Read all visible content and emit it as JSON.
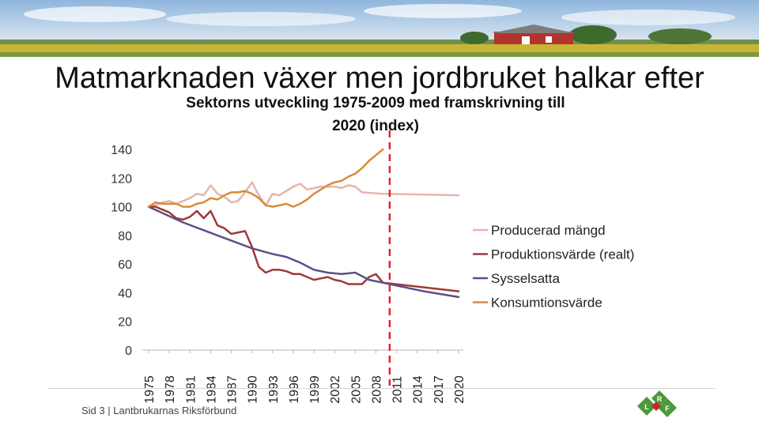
{
  "slide_title": "Matmarknaden växer men jordbruket halkar efter",
  "chart_data": {
    "type": "line",
    "title": [
      "Sektorns utveckling 1975-2009 med framskrivning till",
      "2020 (index)"
    ],
    "xlabel": "",
    "ylabel": "",
    "ylim": [
      0,
      140
    ],
    "xlim": [
      1975,
      2020
    ],
    "y_ticks": [
      0,
      20,
      40,
      60,
      80,
      100,
      120,
      140
    ],
    "x_ticks": [
      "1975",
      "1978",
      "1981",
      "1984",
      "1987",
      "1990",
      "1993",
      "1996",
      "1999",
      "2002",
      "2005",
      "2008",
      "2011",
      "2014",
      "2017",
      "2020"
    ],
    "grid": false,
    "legend_position": "right",
    "vertical_marker": {
      "x": 2010,
      "style": "dashed",
      "color": "#e8202a"
    },
    "series": [
      {
        "name": "Producerad mängd",
        "color": "#e8b3ad",
        "points": [
          [
            1975,
            100
          ],
          [
            1976,
            101
          ],
          [
            1977,
            103
          ],
          [
            1978,
            104
          ],
          [
            1979,
            102
          ],
          [
            1980,
            104
          ],
          [
            1981,
            106
          ],
          [
            1982,
            109
          ],
          [
            1983,
            108
          ],
          [
            1984,
            115
          ],
          [
            1985,
            109
          ],
          [
            1986,
            107
          ],
          [
            1987,
            103
          ],
          [
            1988,
            104
          ],
          [
            1989,
            110
          ],
          [
            1990,
            117
          ],
          [
            1991,
            108
          ],
          [
            1992,
            101
          ],
          [
            1993,
            109
          ],
          [
            1994,
            108
          ],
          [
            1995,
            111
          ],
          [
            1996,
            114
          ],
          [
            1997,
            116
          ],
          [
            1998,
            112
          ],
          [
            1999,
            113
          ],
          [
            2000,
            114
          ],
          [
            2001,
            114
          ],
          [
            2002,
            114
          ],
          [
            2003,
            113
          ],
          [
            2004,
            115
          ],
          [
            2005,
            114
          ],
          [
            2006,
            110
          ],
          [
            2009,
            109
          ],
          [
            2020,
            108
          ]
        ]
      },
      {
        "name": "Produktionsvärde (realt)",
        "color": "#9e3a38",
        "points": [
          [
            1975,
            100
          ],
          [
            1976,
            100
          ],
          [
            1977,
            98
          ],
          [
            1978,
            96
          ],
          [
            1979,
            92
          ],
          [
            1980,
            91
          ],
          [
            1981,
            93
          ],
          [
            1982,
            97
          ],
          [
            1983,
            92
          ],
          [
            1984,
            97
          ],
          [
            1985,
            87
          ],
          [
            1986,
            85
          ],
          [
            1987,
            81
          ],
          [
            1988,
            82
          ],
          [
            1989,
            83
          ],
          [
            1990,
            72
          ],
          [
            1991,
            58
          ],
          [
            1992,
            54
          ],
          [
            1993,
            56
          ],
          [
            1994,
            56
          ],
          [
            1995,
            55
          ],
          [
            1996,
            53
          ],
          [
            1997,
            53
          ],
          [
            1998,
            51
          ],
          [
            1999,
            49
          ],
          [
            2000,
            50
          ],
          [
            2001,
            51
          ],
          [
            2002,
            49
          ],
          [
            2003,
            48
          ],
          [
            2004,
            46
          ],
          [
            2005,
            46
          ],
          [
            2006,
            46
          ],
          [
            2007,
            51
          ],
          [
            2008,
            53
          ],
          [
            2009,
            47
          ],
          [
            2020,
            41
          ]
        ]
      },
      {
        "name": "Sysselsatta",
        "color": "#5e4f87",
        "points": [
          [
            1975,
            100
          ],
          [
            1980,
            89
          ],
          [
            1985,
            80
          ],
          [
            1990,
            71
          ],
          [
            1993,
            67
          ],
          [
            1995,
            65
          ],
          [
            1997,
            61
          ],
          [
            1999,
            56
          ],
          [
            2001,
            54
          ],
          [
            2003,
            53
          ],
          [
            2005,
            54
          ],
          [
            2007,
            49
          ],
          [
            2009,
            47
          ],
          [
            2012,
            44
          ],
          [
            2015,
            41
          ],
          [
            2020,
            37
          ]
        ]
      },
      {
        "name": "Konsumtionsvärde",
        "color": "#d88a3c",
        "points": [
          [
            1975,
            100
          ],
          [
            1976,
            103
          ],
          [
            1977,
            102
          ],
          [
            1978,
            102
          ],
          [
            1979,
            102
          ],
          [
            1980,
            100
          ],
          [
            1981,
            100
          ],
          [
            1982,
            102
          ],
          [
            1983,
            103
          ],
          [
            1984,
            106
          ],
          [
            1985,
            105
          ],
          [
            1986,
            108
          ],
          [
            1987,
            110
          ],
          [
            1988,
            110
          ],
          [
            1989,
            111
          ],
          [
            1990,
            109
          ],
          [
            1991,
            106
          ],
          [
            1992,
            101
          ],
          [
            1993,
            100
          ],
          [
            1994,
            101
          ],
          [
            1995,
            102
          ],
          [
            1996,
            100
          ],
          [
            1997,
            102
          ],
          [
            1998,
            105
          ],
          [
            1999,
            109
          ],
          [
            2000,
            112
          ],
          [
            2001,
            115
          ],
          [
            2002,
            117
          ],
          [
            2003,
            118
          ],
          [
            2004,
            121
          ],
          [
            2005,
            123
          ],
          [
            2006,
            127
          ],
          [
            2007,
            132
          ],
          [
            2008,
            136
          ],
          [
            2009,
            140
          ]
        ]
      }
    ]
  },
  "footer": {
    "slide_label": "Sid 3",
    "separator": "|",
    "organization": "Lantbrukarnas Riksförbund"
  },
  "logo": {
    "letters": [
      "L",
      "R",
      "F"
    ],
    "colors": {
      "green": "#4a9a3a",
      "red": "#c8262c"
    }
  },
  "banner": {
    "colors": {
      "sky": "#aecbe6",
      "field": "#c9b534",
      "grass": "#6a8f3a",
      "barn": "#b2342e"
    }
  }
}
